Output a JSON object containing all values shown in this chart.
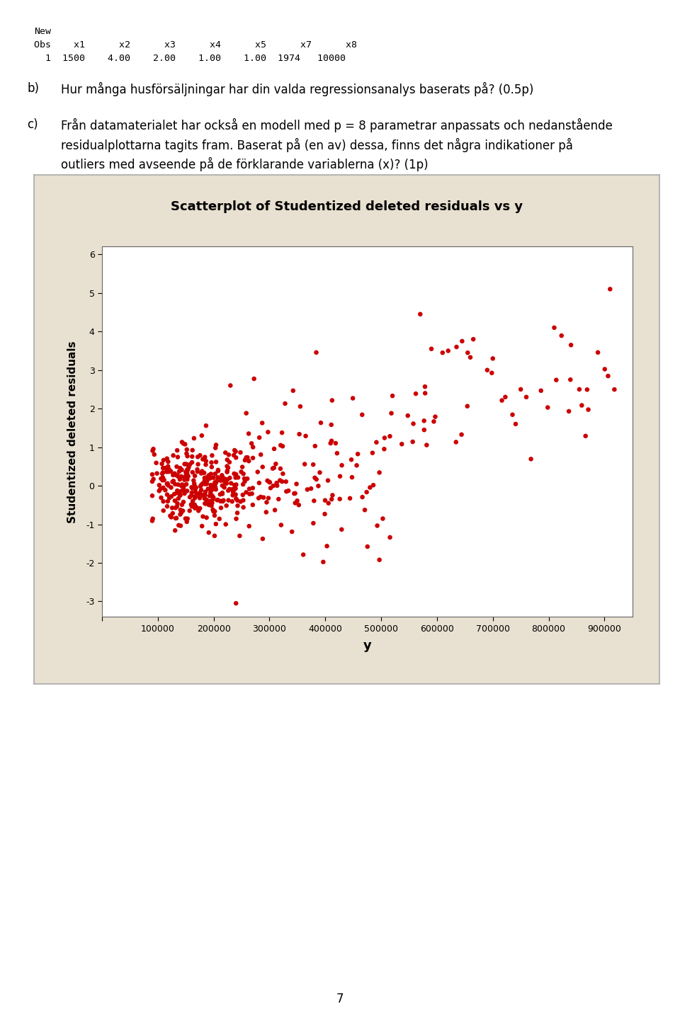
{
  "title": "Scatterplot of Studentized deleted residuals vs y",
  "xlabel": "y",
  "ylabel": "Studentized deleted residuals",
  "plot_bg_color": "#ffffff",
  "outer_bg_color": "#e8e0d0",
  "dot_color": "#cc0000",
  "dot_size": 22,
  "xlim": [
    0,
    950000
  ],
  "ylim": [
    -3.4,
    6.2
  ],
  "xticks": [
    0,
    100000,
    200000,
    300000,
    400000,
    500000,
    600000,
    700000,
    800000,
    900000
  ],
  "yticks": [
    -3,
    -2,
    -1,
    0,
    1,
    2,
    3,
    4,
    5,
    6
  ],
  "seed": 42,
  "page_number": "7"
}
